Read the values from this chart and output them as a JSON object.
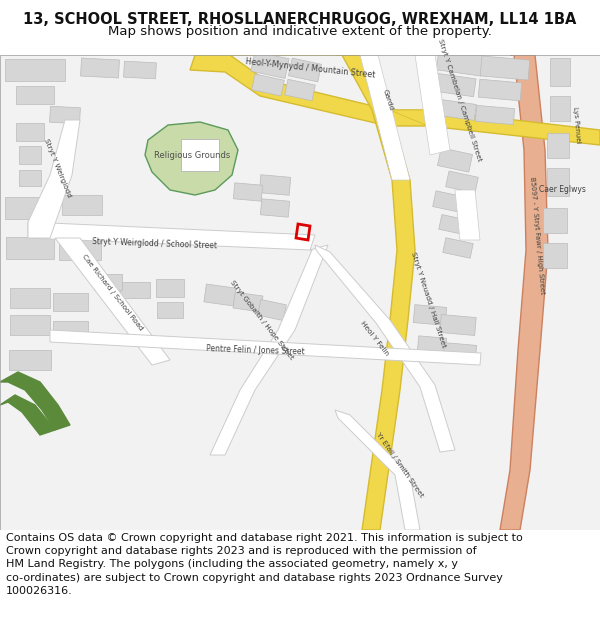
{
  "title": "13, SCHOOL STREET, RHOSLLANERCHRUGOG, WREXHAM, LL14 1BA",
  "subtitle": "Map shows position and indicative extent of the property.",
  "footer": "Contains OS data © Crown copyright and database right 2021. This information is subject to\nCrown copyright and database rights 2023 and is reproduced with the permission of\nHM Land Registry. The polygons (including the associated geometry, namely x, y\nco-ordinates) are subject to Crown copyright and database rights 2023 Ordnance Survey\n100026316.",
  "title_fontsize": 10.5,
  "subtitle_fontsize": 9.5,
  "footer_fontsize": 8,
  "bg_color": "#ffffff",
  "map_bg": "#f2f2f2",
  "building_color": "#d6d6d6",
  "building_edge": "#bbbbbb",
  "road_yellow": "#f0d84a",
  "road_yellow_edge": "#d4bb30",
  "road_salmon": "#e8b090",
  "road_salmon_edge": "#cc8060",
  "road_white": "#ffffff",
  "road_white_edge": "#cccccc",
  "green_area": "#c8dba8",
  "green_line": "#5a9a5a",
  "green_stripe": "#5a8a3a",
  "property_box_color": "#dd0000",
  "text_color": "#404040",
  "title_color": "#111111"
}
